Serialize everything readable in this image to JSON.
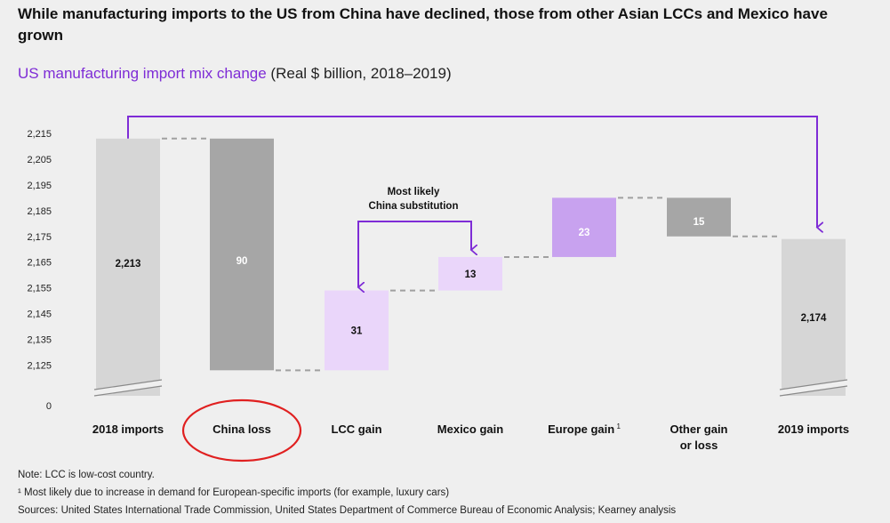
{
  "title": "While manufacturing imports to the US from China have declined, those from other Asian LCCs and Mexico have grown",
  "subtitle_main": "US manufacturing import mix change",
  "subtitle_units": "(Real $ billion, 2018–2019)",
  "annotation": {
    "line1": "Most likely",
    "line2": "China substitution"
  },
  "notes": {
    "note1": "Note: LCC is low-cost country.",
    "note2": "¹ Most likely due to increase in demand for European-specific imports (for example, luxury cars)",
    "note3": "Sources: United States International Trade Commission, United States Department of Commerce Bureau of Economic Analysis; Kearney analysis"
  },
  "colors": {
    "total_bar": "#d6d6d6",
    "china_loss": "#a6a6a6",
    "lcc_mexico": "#ead6fa",
    "europe": "#c8a2ef",
    "other": "#a6a6a6",
    "arrow": "#7e2cd6",
    "highlight_circle": "#e02020"
  },
  "chart_data": {
    "type": "waterfall",
    "categories": [
      "2018 imports",
      "China loss",
      "LCC gain",
      "Mexico gain",
      "Europe gain",
      "Other gain or loss",
      "2019 imports"
    ],
    "category_label_lines": [
      [
        "2018 imports"
      ],
      [
        "China loss"
      ],
      [
        "LCC gain"
      ],
      [
        "Mexico gain"
      ],
      [
        "Europe gain"
      ],
      [
        "Other gain",
        "or loss"
      ],
      [
        "2019 imports"
      ]
    ],
    "category_superscripts": [
      "",
      "",
      "",
      "",
      "1",
      "",
      ""
    ],
    "bars": [
      {
        "label": "2,213",
        "start": 0,
        "end": 2213,
        "kind": "total"
      },
      {
        "label": "90",
        "start": 2213,
        "end": 2123,
        "kind": "decrease"
      },
      {
        "label": "31",
        "start": 2123,
        "end": 2154,
        "kind": "increase"
      },
      {
        "label": "13",
        "start": 2154,
        "end": 2167,
        "kind": "increase"
      },
      {
        "label": "23",
        "start": 2167,
        "end": 2190,
        "kind": "increase"
      },
      {
        "label": "15",
        "start": 2190,
        "end": 2175,
        "kind": "decrease"
      },
      {
        "label": "2,174",
        "start": 0,
        "end": 2174,
        "kind": "total"
      }
    ],
    "y_ticks": [
      "2,215",
      "2,205",
      "2,195",
      "2,185",
      "2,175",
      "2,165",
      "2,155",
      "2,145",
      "2,135",
      "2,125",
      "0"
    ],
    "y_tick_values": [
      2215,
      2205,
      2195,
      2185,
      2175,
      2165,
      2155,
      2145,
      2135,
      2125,
      0
    ],
    "ylim": [
      2120,
      2215
    ],
    "axis_break": true,
    "grid": false,
    "highlighted_category": "China loss"
  }
}
